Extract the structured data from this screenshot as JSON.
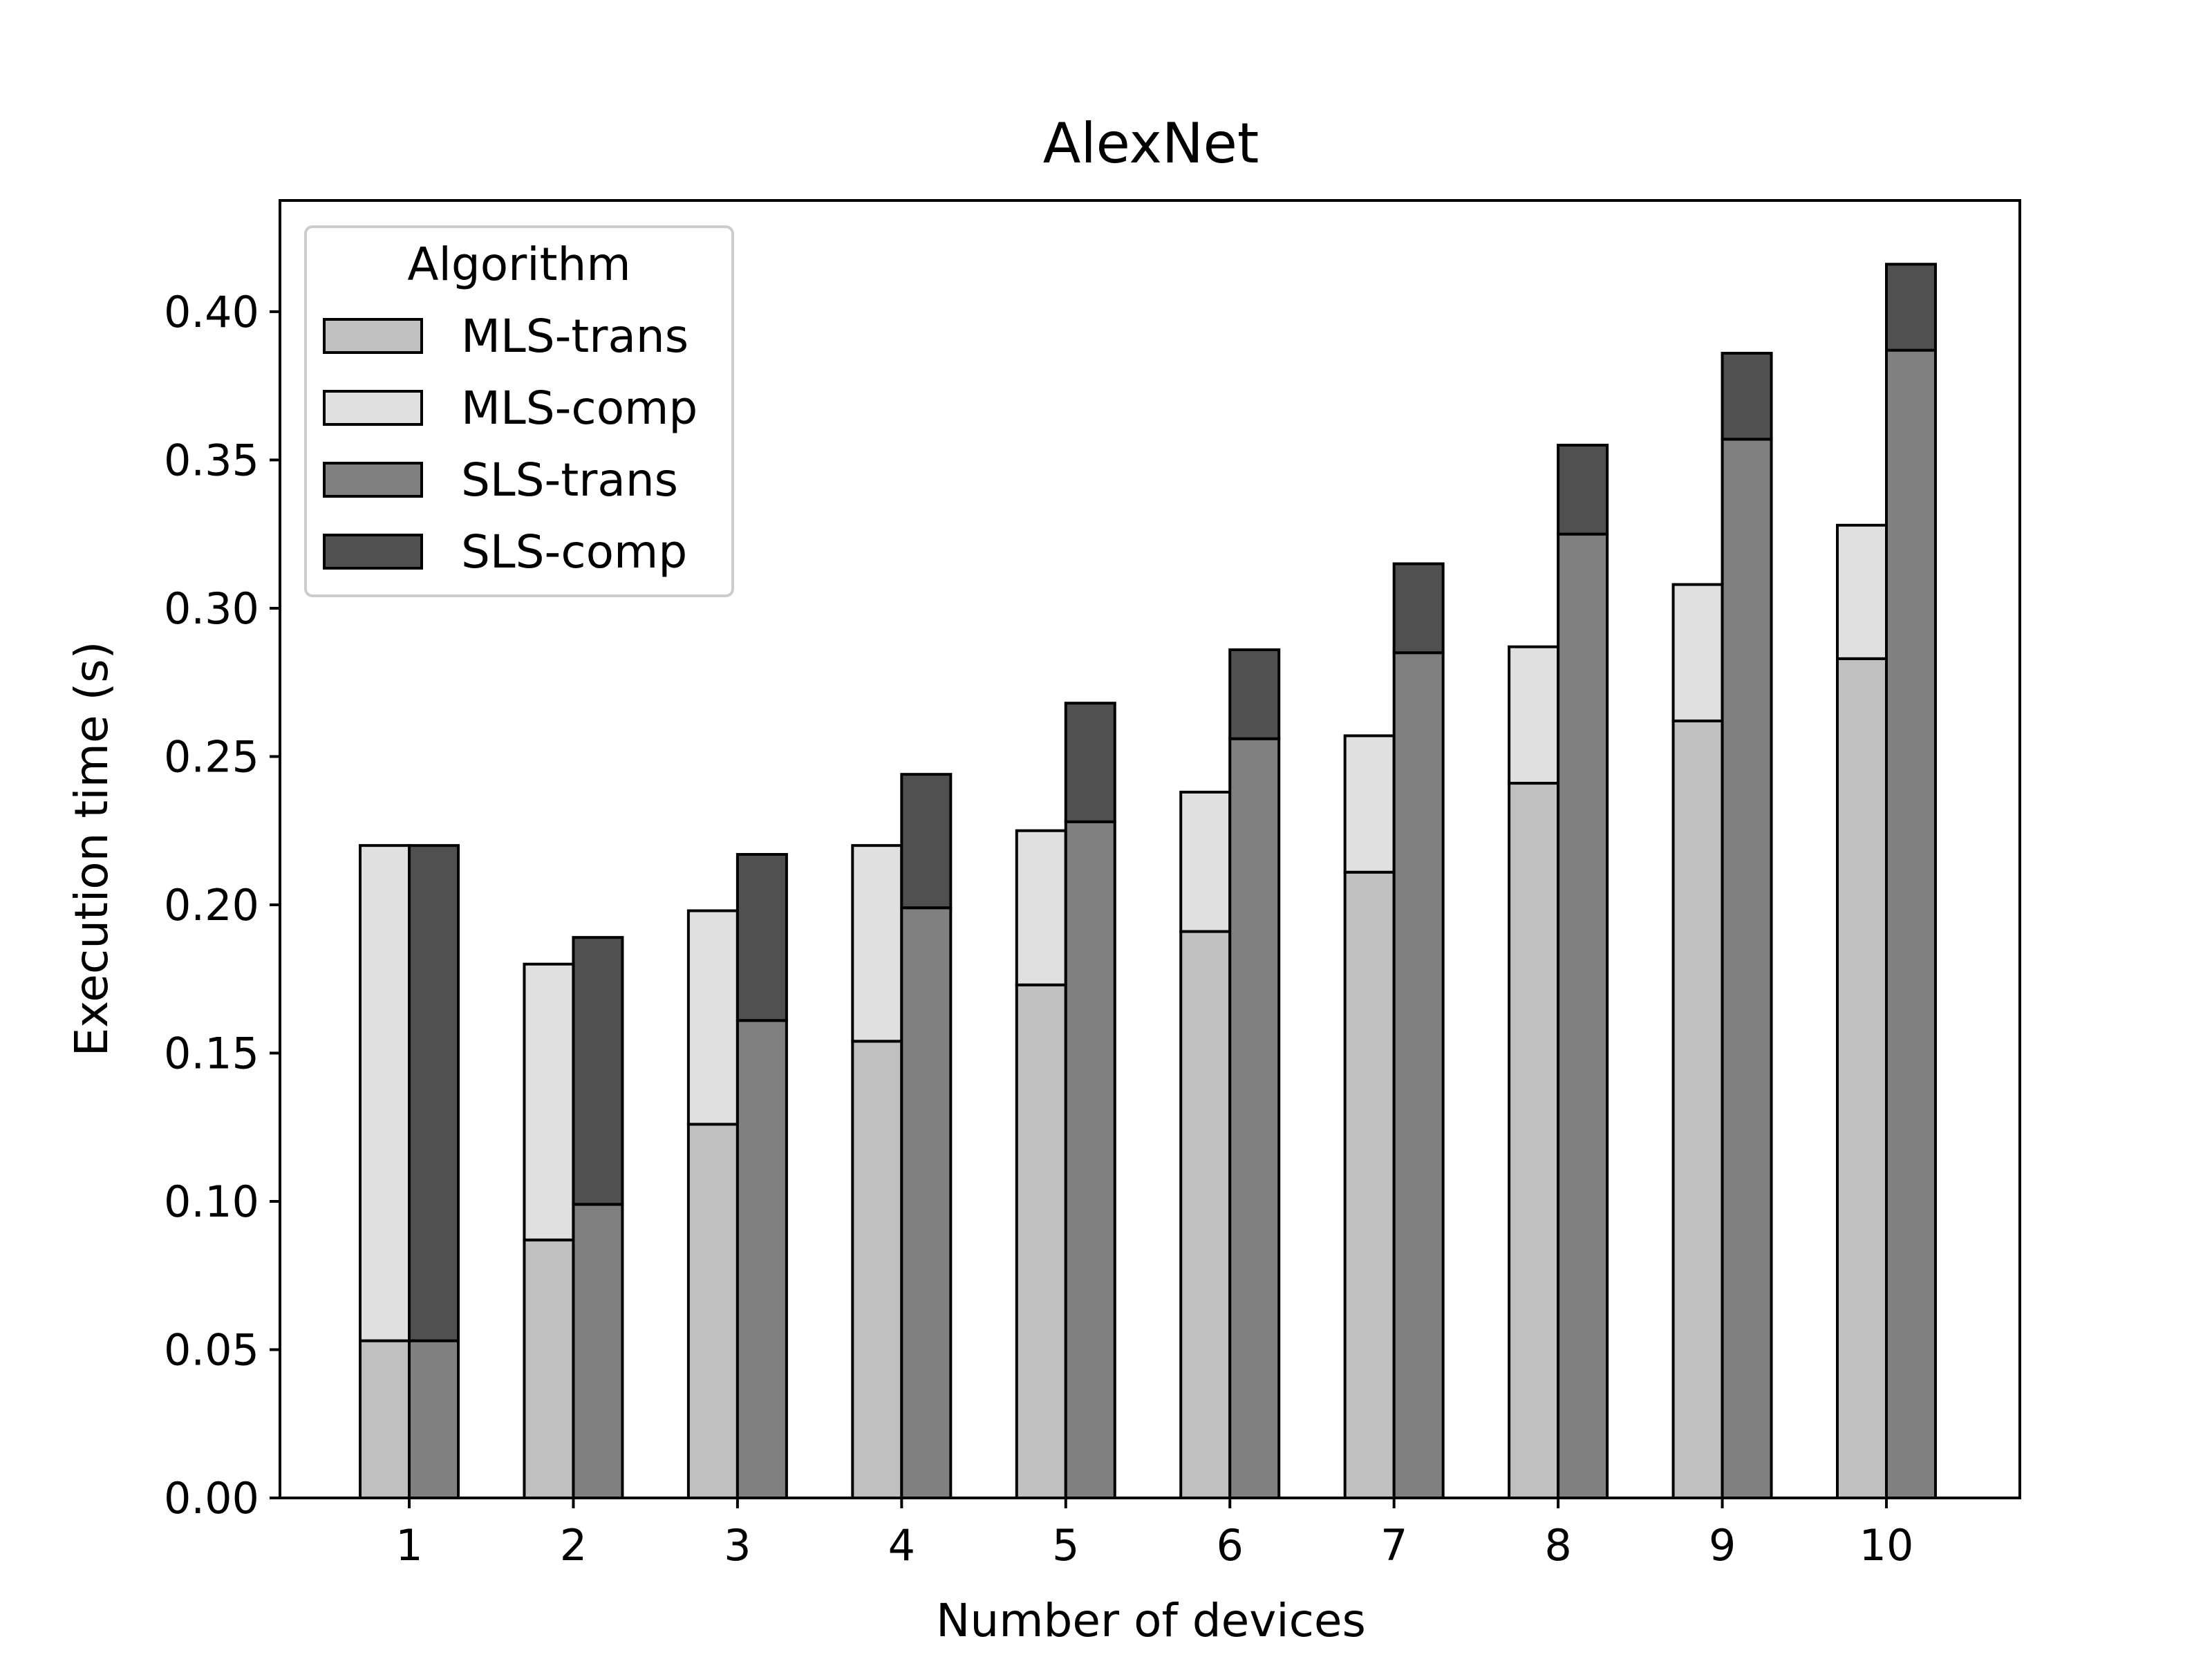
{
  "chart_data": {
    "type": "bar",
    "title": "AlexNet",
    "xlabel": "Number of devices",
    "ylabel": "Execution time (s)",
    "categories": [
      "1",
      "2",
      "3",
      "4",
      "5",
      "6",
      "7",
      "8",
      "9",
      "10"
    ],
    "ylim": [
      0,
      0.4375
    ],
    "yticks": [
      "0.00",
      "0.05",
      "0.10",
      "0.15",
      "0.20",
      "0.25",
      "0.30",
      "0.35",
      "0.40"
    ],
    "grid": false,
    "legend": {
      "title": "Algorithm",
      "placement": "top-left"
    },
    "series": [
      {
        "name": "MLS-trans",
        "group": "MLS",
        "stack_order": 0,
        "color": "#c0c0c0",
        "values": [
          0.053,
          0.087,
          0.126,
          0.154,
          0.173,
          0.191,
          0.211,
          0.241,
          0.262,
          0.283
        ]
      },
      {
        "name": "MLS-comp",
        "group": "MLS",
        "stack_order": 1,
        "color": "#e0e0e0",
        "values": [
          0.167,
          0.093,
          0.072,
          0.066,
          0.052,
          0.047,
          0.046,
          0.046,
          0.046,
          0.045
        ]
      },
      {
        "name": "SLS-trans",
        "group": "SLS",
        "stack_order": 0,
        "color": "#808080",
        "values": [
          0.053,
          0.099,
          0.161,
          0.199,
          0.228,
          0.256,
          0.285,
          0.325,
          0.357,
          0.387
        ]
      },
      {
        "name": "SLS-comp",
        "group": "SLS",
        "stack_order": 1,
        "color": "#505050",
        "values": [
          0.167,
          0.09,
          0.056,
          0.045,
          0.04,
          0.03,
          0.03,
          0.03,
          0.029,
          0.029
        ]
      }
    ],
    "edge_color": "#000000"
  }
}
